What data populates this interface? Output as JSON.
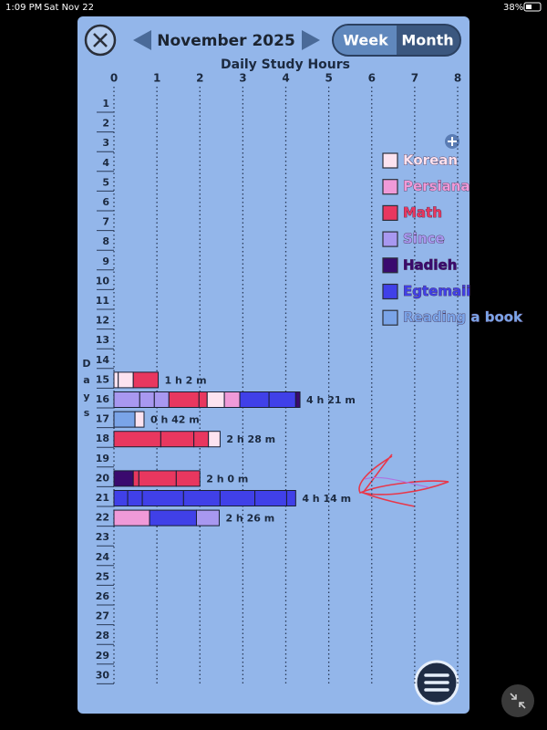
{
  "status_bar": {
    "time": "1:09 PM",
    "date": "Sat Nov 22",
    "battery": "38%"
  },
  "header": {
    "month": "November 2025",
    "tabs": [
      "Week",
      "Month"
    ]
  },
  "chart_data": {
    "type": "bar",
    "orientation": "horizontal",
    "stacked": true,
    "title": "Daily Study Hours",
    "y_label": "Days",
    "categories": [
      1,
      2,
      3,
      4,
      5,
      6,
      7,
      8,
      9,
      10,
      11,
      12,
      13,
      14,
      15,
      16,
      17,
      18,
      19,
      20,
      21,
      22,
      23,
      24,
      25,
      26,
      27,
      28,
      29,
      30
    ],
    "xlim": [
      0,
      8
    ],
    "xticks": [
      0,
      1,
      2,
      3,
      4,
      5,
      6,
      7,
      8
    ],
    "grid": true,
    "legend": [
      {
        "name": "Korean",
        "color": "#fde3f0"
      },
      {
        "name": "Persiana",
        "color": "#f09ad8"
      },
      {
        "name": "Math",
        "color": "#e8375f"
      },
      {
        "name": "Since",
        "color": "#a898f0"
      },
      {
        "name": "Hadieh",
        "color": "#3a0a6e"
      },
      {
        "name": "Egtemaii",
        "color": "#4040e8"
      },
      {
        "name": "Reading a book",
        "color": "#7aa4e8"
      }
    ],
    "bars": [
      null,
      null,
      null,
      null,
      null,
      null,
      null,
      null,
      null,
      null,
      null,
      null,
      null,
      null,
      {
        "label": "1 h 2 m",
        "segments": [
          {
            "color": "#fde3f0",
            "value": 0.1
          },
          {
            "color": "#fde3f0",
            "value": 0.35
          },
          {
            "color": "#e8375f",
            "value": 0.58
          }
        ]
      },
      {
        "label": "4 h 21 m",
        "segments": [
          {
            "color": "#a898f0",
            "value": 0.6
          },
          {
            "color": "#a898f0",
            "value": 0.34
          },
          {
            "color": "#a898f0",
            "value": 0.34
          },
          {
            "color": "#e8375f",
            "value": 0.7
          },
          {
            "color": "#e8375f",
            "value": 0.19
          },
          {
            "color": "#fde3f0",
            "value": 0.4
          },
          {
            "color": "#f09ad8",
            "value": 0.36
          },
          {
            "color": "#4040e8",
            "value": 0.68
          },
          {
            "color": "#4040e8",
            "value": 0.62
          },
          {
            "color": "#3a0a6e",
            "value": 0.1
          }
        ]
      },
      {
        "label": "0 h 42 m",
        "segments": [
          {
            "color": "#7aa4e8",
            "value": 0.49
          },
          {
            "color": "#fde3f0",
            "value": 0.21
          }
        ]
      },
      {
        "label": "2 h 28 m",
        "segments": [
          {
            "color": "#e8375f",
            "value": 1.09
          },
          {
            "color": "#e8375f",
            "value": 0.77
          },
          {
            "color": "#e8375f",
            "value": 0.34
          },
          {
            "color": "#fde3f0",
            "value": 0.27
          }
        ]
      },
      null,
      {
        "label": "2 h 0 m",
        "segments": [
          {
            "color": "#3a0a6e",
            "value": 0.45
          },
          {
            "color": "#e8375f",
            "value": 0.13
          },
          {
            "color": "#e8375f",
            "value": 0.87
          },
          {
            "color": "#e8375f",
            "value": 0.55
          }
        ]
      },
      {
        "label": "4 h 14 m",
        "segments": [
          {
            "color": "#4040e8",
            "value": 0.32
          },
          {
            "color": "#4040e8",
            "value": 0.34
          },
          {
            "color": "#4040e8",
            "value": 0.96
          },
          {
            "color": "#4040e8",
            "value": 0.85
          },
          {
            "color": "#4040e8",
            "value": 0.81
          },
          {
            "color": "#4040e8",
            "value": 0.74
          },
          {
            "color": "#4040e8",
            "value": 0.21
          }
        ]
      },
      {
        "label": "2 h 26 m",
        "segments": [
          {
            "color": "#f09ad8",
            "value": 0.83
          },
          {
            "color": "#4040e8",
            "value": 1.09
          },
          {
            "color": "#a898f0",
            "value": 0.53
          }
        ]
      },
      null,
      null,
      null,
      null,
      null,
      null,
      null,
      null
    ]
  }
}
